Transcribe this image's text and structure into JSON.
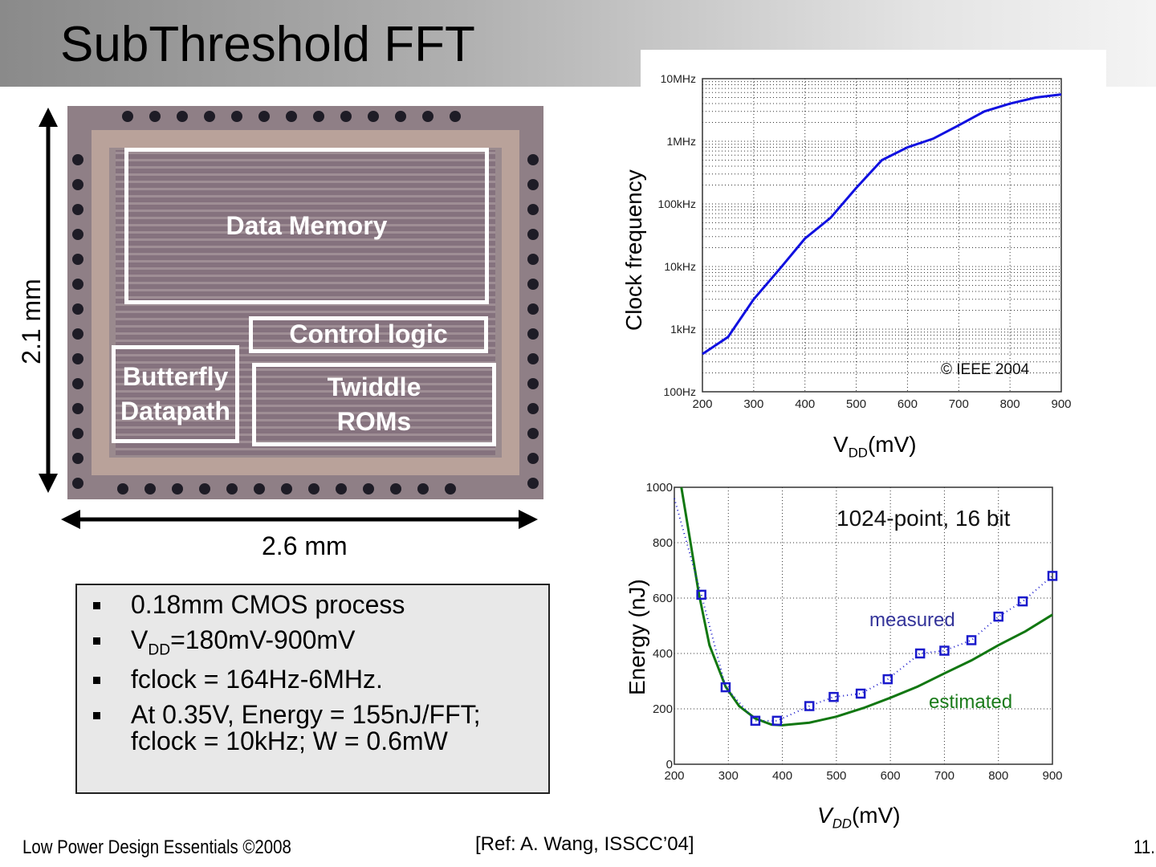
{
  "title": "SubThreshold FFT",
  "die": {
    "blocks": {
      "data_memory": "Data Memory",
      "control_logic": "Control logic",
      "butterfly_1": "Butterfly",
      "butterfly_2": "Datapath",
      "twiddle_1": "Twiddle",
      "twiddle_2": "ROMs"
    },
    "height_label": "2.1 mm",
    "width_label": "2.6 mm"
  },
  "bullets": {
    "b1": "0.18mm CMOS process",
    "b2_pre": "V",
    "b2_sub": "DD",
    "b2_post": "=180mV-900mV",
    "b3": "fclock = 164Hz-6MHz.",
    "b4_l1": "At 0.35V, Energy = 155nJ/FFT;",
    "b4_l2": "fclock =  10kHz;  W = 0.6mW"
  },
  "footer": {
    "left": "Low Power Design Essentials ©2008",
    "ref": "[Ref: A. Wang, ISSCC’04]",
    "page": "11."
  },
  "chart_data": [
    {
      "type": "line",
      "ylabel": "Clock frequency",
      "xlabel_main": "V",
      "xlabel_sub": "DD",
      "xlabel_unit": "(mV)",
      "yscale": "log",
      "ylim": [
        100,
        10000000
      ],
      "xlim": [
        200,
        900
      ],
      "xticks": [
        200,
        300,
        400,
        500,
        600,
        700,
        800,
        900
      ],
      "ytick_labels": [
        "100Hz",
        "1kHz",
        "10kHz",
        "100kHz",
        "1MHz",
        "10MHz"
      ],
      "grid": true,
      "annotation": "© IEEE 2004",
      "color": "#1010e0",
      "x": [
        200,
        250,
        300,
        350,
        400,
        450,
        500,
        550,
        600,
        650,
        700,
        750,
        800,
        850,
        900
      ],
      "y": [
        400,
        750,
        3000,
        9000,
        28000,
        60000,
        180000,
        500000,
        800000,
        1100000,
        1800000,
        3000000,
        4000000,
        5000000,
        5600000
      ]
    },
    {
      "type": "line",
      "ylabel": "Energy (nJ)",
      "xlabel_main": "V",
      "xlabel_sub": "DD",
      "xlabel_unit": "(mV)",
      "ylim": [
        0,
        1000
      ],
      "xlim": [
        200,
        900
      ],
      "xticks": [
        200,
        300,
        400,
        500,
        600,
        700,
        800,
        900
      ],
      "yticks": [
        0,
        200,
        400,
        600,
        800,
        1000
      ],
      "grid": true,
      "annotation": "1024-point, 16 bit",
      "series": [
        {
          "name": "measured",
          "color": "#1a1acc",
          "label_color": "#333399",
          "x": [
            200,
            250,
            295,
            350,
            390,
            450,
            495,
            545,
            595,
            655,
            700,
            750,
            800,
            845,
            900
          ],
          "y": [
            960,
            612,
            278,
            157,
            157,
            210,
            243,
            255,
            307,
            400,
            410,
            448,
            533,
            588,
            680
          ]
        },
        {
          "name": "estimated",
          "color": "#117711",
          "label_color": "#1a7a1a",
          "x": [
            213,
            230,
            245,
            265,
            295,
            320,
            350,
            380,
            400,
            450,
            500,
            550,
            600,
            650,
            700,
            750,
            800,
            850,
            900
          ],
          "y": [
            1000,
            800,
            620,
            430,
            280,
            210,
            165,
            143,
            141,
            150,
            172,
            203,
            240,
            280,
            328,
            375,
            430,
            480,
            540
          ]
        }
      ]
    }
  ]
}
